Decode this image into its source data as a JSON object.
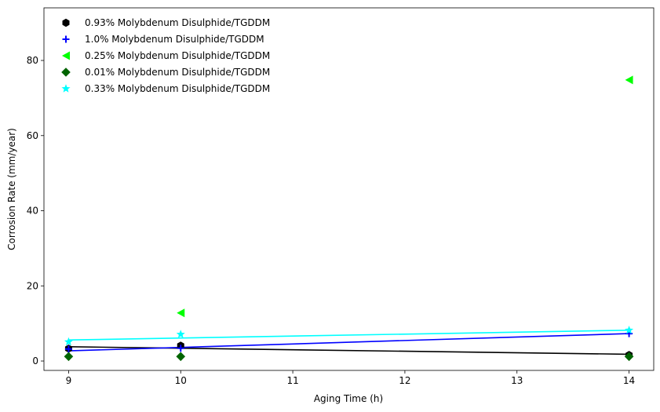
{
  "chart_data": {
    "type": "scatter",
    "title": "",
    "xlabel": "Aging Time (h)",
    "ylabel": "Corrosion Rate (mm/year)",
    "xlim": [
      8.78,
      14.22
    ],
    "ylim": [
      -2.5,
      94
    ],
    "xticks": [
      9,
      10,
      11,
      12,
      13,
      14
    ],
    "yticks": [
      0,
      20,
      40,
      60,
      80
    ],
    "grid": false,
    "legend_position": "top-left",
    "series": [
      {
        "name": "0.93% Molybdenum Disulphide/TGDDM",
        "color": "#000000",
        "marker": "hexagon",
        "points": [
          {
            "x": 9,
            "y": 3.3
          },
          {
            "x": 10,
            "y": 4.1
          },
          {
            "x": 14,
            "y": 1.6
          }
        ],
        "fit_line": [
          {
            "x": 9,
            "y": 3.8
          },
          {
            "x": 14,
            "y": 1.8
          }
        ]
      },
      {
        "name": "1.0% Molybdenum Disulphide/TGDDM",
        "color": "#0000ff",
        "marker": "plus",
        "points": [
          {
            "x": 9,
            "y": 3.2
          },
          {
            "x": 10,
            "y": 3.4
          },
          {
            "x": 14,
            "y": 7.3
          }
        ],
        "fit_line": [
          {
            "x": 9,
            "y": 2.7
          },
          {
            "x": 14,
            "y": 7.3
          }
        ]
      },
      {
        "name": "0.25% Molybdenum Disulphide/TGDDM",
        "color": "#00ff00",
        "marker": "triangle-left",
        "points": [
          {
            "x": 10,
            "y": 12.8
          },
          {
            "x": 14,
            "y": 74.8
          }
        ],
        "fit_line": null
      },
      {
        "name": "0.01% Molybdenum Disulphide/TGDDM",
        "color": "#006400",
        "marker": "diamond",
        "points": [
          {
            "x": 9,
            "y": 1.2
          },
          {
            "x": 10,
            "y": 1.2
          },
          {
            "x": 14,
            "y": 1.2
          }
        ],
        "fit_line": null
      },
      {
        "name": "0.33% Molybdenum Disulphide/TGDDM",
        "color": "#00ffff",
        "marker": "star",
        "points": [
          {
            "x": 9,
            "y": 5.1
          },
          {
            "x": 10,
            "y": 7.1
          },
          {
            "x": 14,
            "y": 8.2
          }
        ],
        "fit_line": [
          {
            "x": 9,
            "y": 5.6
          },
          {
            "x": 14,
            "y": 8.2
          }
        ]
      }
    ]
  }
}
